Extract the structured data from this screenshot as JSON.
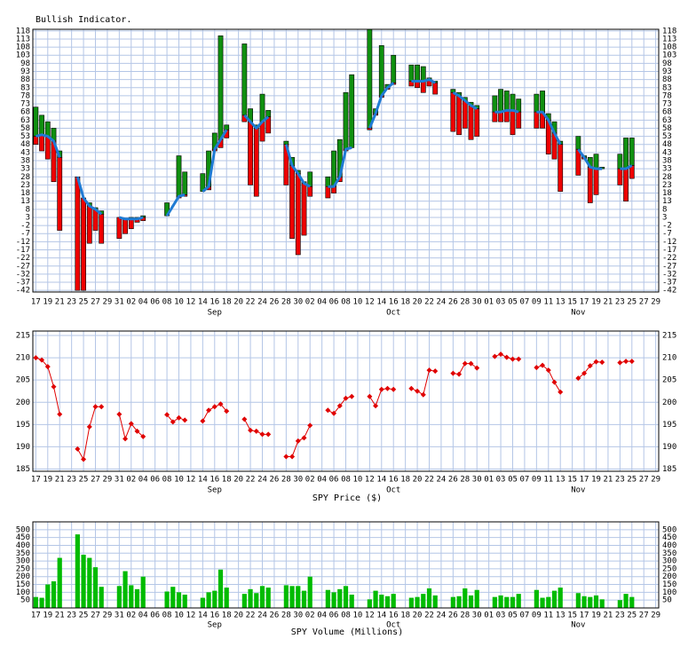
{
  "chart_data": [
    {
      "type": "indicator",
      "title": "Bullish Indicator.",
      "categories": [
        "17",
        null,
        "19",
        null,
        "21",
        null,
        "23",
        null,
        "25",
        null,
        "27",
        null,
        "29",
        null,
        "31",
        null,
        "02",
        null,
        "04",
        null,
        "06",
        null,
        "08",
        null,
        "10",
        null,
        "12",
        null,
        "14",
        null,
        "16",
        null,
        "18",
        null,
        "20",
        null,
        "22",
        null,
        "24",
        null,
        "26",
        null,
        "28",
        null,
        "30",
        null,
        "02",
        null,
        "04",
        null,
        "06",
        null,
        "08",
        null,
        "10",
        null,
        "12",
        null,
        "14",
        null,
        "16",
        null,
        "18",
        null,
        "20",
        null,
        "22",
        null,
        "24",
        null,
        "26",
        null,
        "28",
        null,
        "30",
        null,
        "01",
        null,
        "03",
        null,
        "05",
        null,
        "07",
        null,
        "09",
        null,
        "11",
        null,
        "13",
        null,
        "15",
        null,
        "17",
        null,
        "19",
        null,
        "21",
        null,
        "23",
        null,
        "25",
        null,
        "27",
        null,
        "29"
      ],
      "x_groups": [
        null,
        null,
        null,
        null,
        null,
        null,
        null,
        null,
        null,
        null,
        null,
        null,
        null,
        null,
        null,
        null,
        null,
        null,
        null,
        null,
        null,
        null,
        null,
        null,
        null,
        null,
        null,
        null,
        null,
        null,
        "Sep",
        null,
        null,
        null,
        null,
        null,
        null,
        null,
        null,
        null,
        null,
        null,
        null,
        null,
        null,
        null,
        null,
        null,
        null,
        null,
        null,
        null,
        null,
        null,
        null,
        null,
        null,
        null,
        null,
        null,
        "Oct",
        null,
        null,
        null,
        null,
        null,
        null,
        null,
        null,
        null,
        null,
        null,
        null,
        null,
        null,
        null,
        null,
        null,
        null,
        null,
        null,
        null,
        null,
        null,
        null,
        null,
        null,
        null,
        null,
        null,
        null,
        "Nov",
        null,
        null,
        null,
        null,
        null,
        null,
        null,
        null,
        null,
        null,
        null,
        null,
        null
      ],
      "series": [
        {
          "type": "line",
          "color": "#1f7bd4",
          "values": [
            53,
            54,
            53,
            50,
            40,
            null,
            null,
            28,
            15,
            10,
            8,
            5,
            null,
            null,
            3,
            2,
            2,
            2,
            3,
            null,
            null,
            null,
            4,
            10,
            16,
            17,
            null,
            null,
            19,
            22,
            45,
            51,
            57,
            null,
            null,
            66,
            62,
            58,
            62,
            65,
            null,
            null,
            48,
            35,
            30,
            24,
            22,
            null,
            null,
            22,
            22,
            28,
            45,
            46,
            null,
            null,
            58,
            67,
            78,
            83,
            86,
            null,
            null,
            87,
            87,
            87,
            88,
            86,
            null,
            null,
            80,
            78,
            75,
            72,
            70,
            null,
            null,
            68,
            68,
            69,
            69,
            68,
            null,
            null,
            68,
            68,
            63,
            55,
            48,
            null,
            null,
            45,
            40,
            34,
            33,
            33,
            null,
            null,
            33,
            33,
            35,
            null,
            null,
            null,
            null
          ]
        },
        {
          "type": "bar",
          "color": "#109010",
          "values": [
            71,
            66,
            62,
            58,
            44,
            null,
            null,
            28,
            15,
            12,
            9,
            7,
            null,
            null,
            3,
            2,
            3,
            3,
            4,
            null,
            null,
            null,
            12,
            10,
            41,
            31,
            null,
            null,
            30,
            44,
            55,
            115,
            60,
            null,
            null,
            110,
            70,
            60,
            79,
            69,
            null,
            null,
            50,
            40,
            32,
            25,
            31,
            null,
            null,
            28,
            44,
            51,
            80,
            91,
            null,
            null,
            119,
            70,
            109,
            85,
            103,
            null,
            null,
            97,
            97,
            96,
            89,
            87,
            null,
            null,
            82,
            80,
            77,
            74,
            72,
            null,
            null,
            78,
            82,
            81,
            79,
            76,
            null,
            null,
            79,
            81,
            67,
            62,
            50,
            null,
            null,
            53,
            41,
            40,
            42,
            34,
            null,
            null,
            42,
            52,
            52,
            null,
            null,
            null,
            null
          ]
        },
        {
          "type": "bar",
          "color": "#ee0000",
          "values": [
            48,
            44,
            39,
            25,
            -5,
            null,
            null,
            -42,
            -42,
            -13,
            -5,
            -13,
            null,
            null,
            -10,
            -7,
            -4,
            0,
            1,
            null,
            null,
            null,
            4,
            10,
            15,
            16,
            null,
            null,
            19,
            20,
            44,
            46,
            52,
            null,
            null,
            62,
            23,
            16,
            50,
            55,
            null,
            null,
            23,
            -10,
            -20,
            -8,
            16,
            null,
            null,
            15,
            18,
            25,
            44,
            46,
            null,
            null,
            57,
            66,
            77,
            82,
            85,
            null,
            null,
            84,
            83,
            80,
            84,
            79,
            null,
            null,
            56,
            54,
            58,
            51,
            53,
            null,
            null,
            62,
            62,
            62,
            54,
            58,
            null,
            null,
            58,
            58,
            42,
            39,
            19,
            null,
            null,
            29,
            39,
            12,
            17,
            33,
            null,
            null,
            23,
            13,
            27,
            null,
            null,
            null,
            null
          ]
        }
      ],
      "ylim": [
        -43,
        119
      ],
      "yticks": [
        118,
        113,
        108,
        103,
        98,
        93,
        88,
        83,
        78,
        73,
        68,
        63,
        58,
        53,
        48,
        43,
        38,
        33,
        28,
        23,
        18,
        13,
        8,
        3,
        -2,
        -7,
        -12,
        -17,
        -22,
        -27,
        -32,
        -37,
        -42
      ],
      "grid": true
    },
    {
      "type": "line",
      "title": "SPY Price ($)",
      "categories": [
        "17",
        null,
        "19",
        null,
        "21",
        null,
        "23",
        null,
        "25",
        null,
        "27",
        null,
        "29",
        null,
        "31",
        null,
        "02",
        null,
        "04",
        null,
        "06",
        null,
        "08",
        null,
        "10",
        null,
        "12",
        null,
        "14",
        null,
        "16",
        null,
        "18",
        null,
        "20",
        null,
        "22",
        null,
        "24",
        null,
        "26",
        null,
        "28",
        null,
        "30",
        null,
        "02",
        null,
        "04",
        null,
        "06",
        null,
        "08",
        null,
        "10",
        null,
        "12",
        null,
        "14",
        null,
        "16",
        null,
        "18",
        null,
        "20",
        null,
        "22",
        null,
        "24",
        null,
        "26",
        null,
        "28",
        null,
        "30",
        null,
        "01",
        null,
        "03",
        null,
        "05",
        null,
        "07",
        null,
        "09",
        null,
        "11",
        null,
        "13",
        null,
        "15",
        null,
        "17",
        null,
        "19",
        null,
        "21",
        null,
        "23",
        null,
        "25",
        null,
        "27",
        null,
        "29"
      ],
      "x_groups": [
        null,
        null,
        null,
        null,
        null,
        null,
        null,
        null,
        null,
        null,
        null,
        null,
        null,
        null,
        null,
        null,
        null,
        null,
        null,
        null,
        null,
        null,
        null,
        null,
        null,
        null,
        null,
        null,
        null,
        null,
        "Sep",
        null,
        null,
        null,
        null,
        null,
        null,
        null,
        null,
        null,
        null,
        null,
        null,
        null,
        null,
        null,
        null,
        null,
        null,
        null,
        null,
        null,
        null,
        null,
        null,
        null,
        null,
        null,
        null,
        null,
        "Oct",
        null,
        null,
        null,
        null,
        null,
        null,
        null,
        null,
        null,
        null,
        null,
        null,
        null,
        null,
        null,
        null,
        null,
        null,
        null,
        null,
        null,
        null,
        null,
        null,
        null,
        null,
        null,
        null,
        null,
        null,
        "Nov",
        null,
        null,
        null,
        null,
        null,
        null,
        null,
        null,
        null,
        null,
        null,
        null,
        null
      ],
      "series": [
        {
          "color": "#e00000",
          "values": [
            210.0,
            209.5,
            208.0,
            203.5,
            197.3,
            null,
            null,
            189.5,
            187.2,
            194.5,
            199.0,
            199.0,
            null,
            null,
            197.3,
            191.8,
            195.2,
            193.5,
            192.3,
            null,
            null,
            null,
            197.2,
            195.6,
            196.5,
            196.0,
            null,
            null,
            195.8,
            198.2,
            199.0,
            199.6,
            198.0,
            null,
            null,
            196.2,
            193.7,
            193.5,
            192.8,
            192.8,
            null,
            null,
            187.8,
            187.8,
            191.3,
            192.0,
            194.8,
            null,
            null,
            198.2,
            197.5,
            199.2,
            200.9,
            201.3,
            null,
            null,
            201.3,
            199.2,
            202.9,
            203.1,
            202.9,
            null,
            null,
            203.1,
            202.5,
            201.7,
            207.2,
            207.0,
            null,
            null,
            206.5,
            206.3,
            208.7,
            208.7,
            207.7,
            null,
            null,
            210.3,
            210.8,
            210.1,
            209.7,
            209.7,
            null,
            null,
            207.8,
            208.3,
            207.2,
            204.5,
            202.3,
            null,
            null,
            205.4,
            206.5,
            208.2,
            209.1,
            209.0,
            null,
            null,
            208.9,
            209.2,
            209.2,
            null,
            null,
            null,
            null
          ]
        }
      ],
      "ylim": [
        184.5,
        216
      ],
      "yticks": [
        215,
        210,
        205,
        200,
        195,
        190,
        185
      ],
      "grid": true
    },
    {
      "type": "bar",
      "title": "SPY Volume (Millions)",
      "categories": [
        "17",
        null,
        "19",
        null,
        "21",
        null,
        "23",
        null,
        "25",
        null,
        "27",
        null,
        "29",
        null,
        "31",
        null,
        "02",
        null,
        "04",
        null,
        "06",
        null,
        "08",
        null,
        "10",
        null,
        "12",
        null,
        "14",
        null,
        "16",
        null,
        "18",
        null,
        "20",
        null,
        "22",
        null,
        "24",
        null,
        "26",
        null,
        "28",
        null,
        "30",
        null,
        "02",
        null,
        "04",
        null,
        "06",
        null,
        "08",
        null,
        "10",
        null,
        "12",
        null,
        "14",
        null,
        "16",
        null,
        "18",
        null,
        "20",
        null,
        "22",
        null,
        "24",
        null,
        "26",
        null,
        "28",
        null,
        "30",
        null,
        "01",
        null,
        "03",
        null,
        "05",
        null,
        "07",
        null,
        "09",
        null,
        "11",
        null,
        "13",
        null,
        "15",
        null,
        "17",
        null,
        "19",
        null,
        "21",
        null,
        "23",
        null,
        "25",
        null,
        "27",
        null,
        "29"
      ],
      "x_groups": [
        null,
        null,
        null,
        null,
        null,
        null,
        null,
        null,
        null,
        null,
        null,
        null,
        null,
        null,
        null,
        null,
        null,
        null,
        null,
        null,
        null,
        null,
        null,
        null,
        null,
        null,
        null,
        null,
        null,
        null,
        "Sep",
        null,
        null,
        null,
        null,
        null,
        null,
        null,
        null,
        null,
        null,
        null,
        null,
        null,
        null,
        null,
        null,
        null,
        null,
        null,
        null,
        null,
        null,
        null,
        null,
        null,
        null,
        null,
        null,
        null,
        "Oct",
        null,
        null,
        null,
        null,
        null,
        null,
        null,
        null,
        null,
        null,
        null,
        null,
        null,
        null,
        null,
        null,
        null,
        null,
        null,
        null,
        null,
        null,
        null,
        null,
        null,
        null,
        null,
        null,
        null,
        null,
        "Nov",
        null,
        null,
        null,
        null,
        null,
        null,
        null,
        null,
        null,
        null,
        null,
        null,
        null
      ],
      "series": [
        {
          "color": "#00bb00",
          "values": [
            70,
            65,
            150,
            170,
            320,
            null,
            null,
            470,
            340,
            320,
            260,
            135,
            null,
            null,
            140,
            235,
            145,
            120,
            200,
            null,
            null,
            null,
            105,
            135,
            100,
            85,
            null,
            null,
            65,
            100,
            110,
            245,
            130,
            null,
            null,
            90,
            120,
            95,
            140,
            130,
            null,
            null,
            145,
            140,
            140,
            110,
            200,
            null,
            null,
            115,
            100,
            120,
            140,
            85,
            null,
            null,
            55,
            110,
            85,
            75,
            90,
            null,
            null,
            65,
            70,
            90,
            125,
            80,
            null,
            null,
            70,
            75,
            125,
            80,
            115,
            null,
            null,
            70,
            80,
            70,
            70,
            90,
            null,
            null,
            115,
            65,
            70,
            110,
            130,
            null,
            null,
            95,
            75,
            70,
            80,
            55,
            null,
            null,
            50,
            90,
            70,
            null,
            null,
            null,
            null
          ]
        }
      ],
      "ylim": [
        0,
        550
      ],
      "yticks": [
        500,
        450,
        400,
        350,
        300,
        250,
        200,
        150,
        100,
        50
      ],
      "grid": true
    }
  ]
}
